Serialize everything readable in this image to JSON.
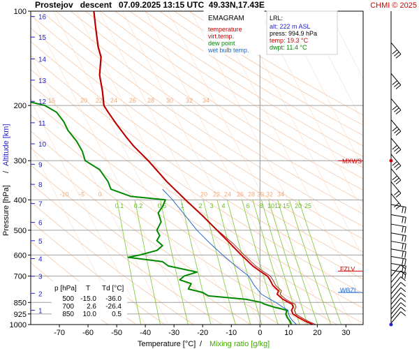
{
  "header": {
    "title": "Prostejov   descent   07.09.2025 13:15 UTC  49.33N,17.43E",
    "credit": "CHMI © 2025"
  },
  "legend": {
    "title": "EMAGRAM",
    "items": [
      {
        "label": "temperature",
        "color": "#cc0000"
      },
      {
        "label": "virt.temp.",
        "color": "#cc0000"
      },
      {
        "label": "dew point",
        "color": "#008800"
      },
      {
        "label": "wet bulb temp.",
        "color": "#2266cc"
      }
    ]
  },
  "lrl": {
    "title": "LRL:",
    "alt": "alt: 222 m ASL",
    "press": "press: 994.9 hPa",
    "temp": "temp: 19.3 °C",
    "dwpt": "dwpt: 11.4 °C"
  },
  "levels_table": {
    "headers": [
      "p [hPa]",
      "T",
      "Td [°C]"
    ],
    "rows": [
      [
        "500",
        "-15.0",
        "-36.0"
      ],
      [
        "700",
        "2.6",
        "-26.4"
      ],
      [
        "850",
        "10.0",
        "0.5"
      ]
    ]
  },
  "markers": [
    {
      "label": "MXWS",
      "p": 300,
      "color": "#cc0000"
    },
    {
      "label": "FZLV",
      "p": 675,
      "color": "#cc0000"
    },
    {
      "label": "WBZL",
      "p": 790,
      "color": "#2266cc"
    }
  ],
  "chart_data": {
    "type": "line",
    "xlabel": "Temperature [°C]",
    "xlabel_secondary": "Mixing ratio [g/kg]",
    "ylabel": "Pressure [hPa]",
    "ylabel_secondary": "Altitude [km]",
    "xlim": [
      -80,
      36
    ],
    "ylim": [
      1000,
      100
    ],
    "y_scale": "log",
    "x_ticks": [
      -70,
      -60,
      -50,
      -40,
      -30,
      -20,
      -10,
      0,
      10,
      20,
      30
    ],
    "p_ticks": [
      100,
      200,
      300,
      400,
      500,
      600,
      700,
      850,
      925,
      1000
    ],
    "km_ticks": [
      {
        "km": "1",
        "p": 900
      },
      {
        "km": "2",
        "p": 795
      },
      {
        "km": "3",
        "p": 701
      },
      {
        "km": "4",
        "p": 616
      },
      {
        "km": "5",
        "p": 540
      },
      {
        "km": "6",
        "p": 472
      },
      {
        "km": "7",
        "p": 411
      },
      {
        "km": "8",
        "p": 357
      },
      {
        "km": "9",
        "p": 308
      },
      {
        "km": "10",
        "p": 265
      },
      {
        "km": "11",
        "p": 227
      },
      {
        "km": "12",
        "p": 194
      },
      {
        "km": "13",
        "p": 166
      },
      {
        "km": "14",
        "p": 142
      },
      {
        "km": "15",
        "p": 121
      },
      {
        "km": "16",
        "p": 104
      }
    ],
    "isotherm_labels_200": [
      "15",
      "20",
      "22",
      "24",
      "26",
      "28",
      "30",
      "32",
      "34"
    ],
    "isotherm_labels_400": [
      "-10",
      "-5",
      "0",
      "20",
      "22",
      "24",
      "26",
      "28",
      "30",
      "32",
      "34"
    ],
    "mixing_ratio_labels": [
      "0.1",
      "0.2",
      "0.5",
      "1",
      "2",
      "3",
      "4",
      "6",
      "8",
      "10",
      "12",
      "15",
      "20",
      "25"
    ],
    "series": [
      {
        "name": "temperature",
        "points": [
          [
            1000,
            18.5
          ],
          [
            975,
            15.8
          ],
          [
            950,
            13.5
          ],
          [
            925,
            11.5
          ],
          [
            900,
            11.0
          ],
          [
            880,
            11.6
          ],
          [
            860,
            11.2
          ],
          [
            850,
            10.0
          ],
          [
            830,
            8.0
          ],
          [
            800,
            6.0
          ],
          [
            780,
            6.5
          ],
          [
            750,
            4.5
          ],
          [
            720,
            3.5
          ],
          [
            700,
            2.6
          ],
          [
            675,
            0.0
          ],
          [
            650,
            -2.5
          ],
          [
            600,
            -6.5
          ],
          [
            550,
            -10.5
          ],
          [
            500,
            -15.0
          ],
          [
            450,
            -20.0
          ],
          [
            400,
            -26.0
          ],
          [
            350,
            -32.5
          ],
          [
            300,
            -39.0
          ],
          [
            270,
            -44.0
          ],
          [
            250,
            -47.0
          ],
          [
            230,
            -50.0
          ],
          [
            210,
            -53.0
          ],
          [
            200,
            -54.5
          ],
          [
            180,
            -55.0
          ],
          [
            160,
            -56.0
          ],
          [
            140,
            -55.5
          ],
          [
            130,
            -56.5
          ],
          [
            120,
            -57.0
          ],
          [
            110,
            -57.5
          ],
          [
            100,
            -58.0
          ]
        ]
      },
      {
        "name": "dew point",
        "points": [
          [
            1000,
            11.0
          ],
          [
            975,
            10.5
          ],
          [
            950,
            9.5
          ],
          [
            925,
            9.0
          ],
          [
            900,
            9.5
          ],
          [
            880,
            5.0
          ],
          [
            860,
            1.5
          ],
          [
            850,
            0.5
          ],
          [
            830,
            -5.0
          ],
          [
            810,
            -18.0
          ],
          [
            790,
            -20.0
          ],
          [
            770,
            -25.0
          ],
          [
            740,
            -24.0
          ],
          [
            720,
            -28.0
          ],
          [
            700,
            -26.4
          ],
          [
            680,
            -22.0
          ],
          [
            650,
            -32.0
          ],
          [
            630,
            -34.0
          ],
          [
            610,
            -46.0
          ],
          [
            600,
            -42.0
          ],
          [
            580,
            -36.0
          ],
          [
            560,
            -34.0
          ],
          [
            540,
            -36.0
          ],
          [
            520,
            -35.0
          ],
          [
            500,
            -36.0
          ],
          [
            470,
            -34.5
          ],
          [
            440,
            -35.5
          ],
          [
            420,
            -34.0
          ],
          [
            400,
            -33.0
          ],
          [
            390,
            -45.0
          ],
          [
            370,
            -52.0
          ],
          [
            350,
            -53.0
          ],
          [
            320,
            -56.0
          ],
          [
            300,
            -61.0
          ],
          [
            280,
            -62.0
          ],
          [
            260,
            -64.0
          ],
          [
            240,
            -67.0
          ],
          [
            225,
            -68.5
          ],
          [
            210,
            -71.0
          ],
          [
            200,
            -75.0
          ],
          [
            195,
            -80.0
          ]
        ]
      },
      {
        "name": "wet bulb temp.",
        "points": [
          [
            1000,
            12.8
          ],
          [
            975,
            11.5
          ],
          [
            950,
            10.5
          ],
          [
            925,
            10.0
          ],
          [
            900,
            9.8
          ],
          [
            880,
            8.0
          ],
          [
            850,
            5.5
          ],
          [
            800,
            0.5
          ],
          [
            790,
            0.0
          ],
          [
            750,
            -2.0
          ],
          [
            700,
            -4.0
          ],
          [
            650,
            -8.5
          ],
          [
            600,
            -13.0
          ],
          [
            550,
            -17.5
          ],
          [
            500,
            -22.0
          ],
          [
            450,
            -26.0
          ],
          [
            400,
            -30.5
          ],
          [
            370,
            -34.0
          ]
        ]
      }
    ]
  }
}
